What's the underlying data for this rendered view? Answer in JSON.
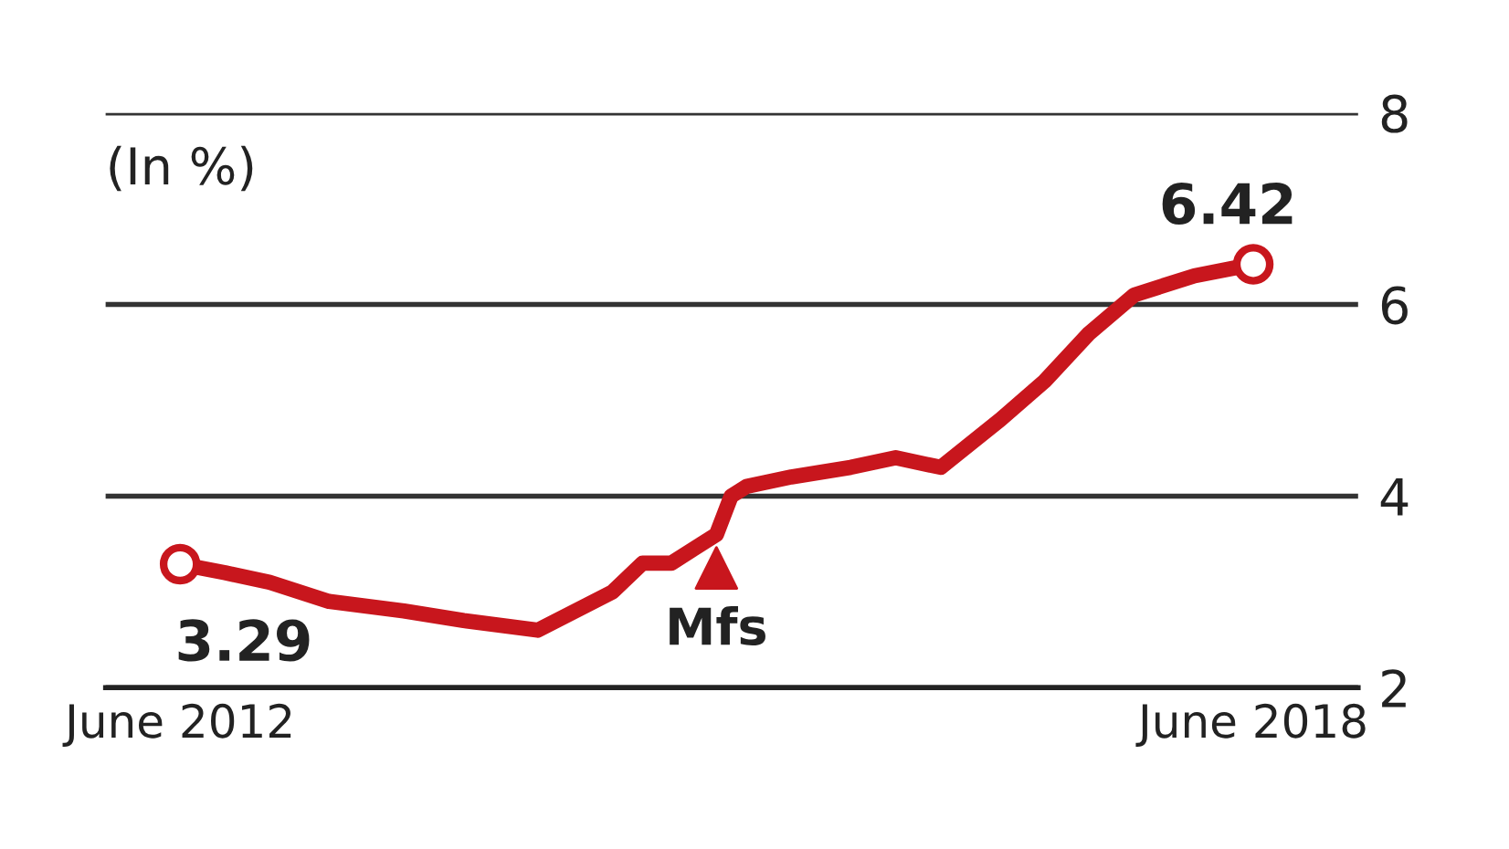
{
  "chart_data": {
    "type": "line",
    "ylabel": "(In %)",
    "x": [
      "2012-06",
      "2012-09",
      "2012-12",
      "2013-04",
      "2013-09",
      "2014-01",
      "2014-06",
      "2014-11",
      "2015-01",
      "2015-03",
      "2015-06",
      "2015-07",
      "2015-08",
      "2015-11",
      "2016-03",
      "2016-06",
      "2016-09",
      "2017-01",
      "2017-04",
      "2017-07",
      "2017-10",
      "2018-02",
      "2018-06"
    ],
    "series": [
      {
        "color": "#c8161d",
        "values": [
          3.29,
          3.2,
          3.1,
          2.9,
          2.8,
          2.7,
          2.6,
          3.0,
          3.3,
          3.3,
          3.6,
          4.0,
          4.1,
          4.2,
          4.3,
          4.4,
          4.3,
          4.8,
          5.2,
          5.7,
          6.1,
          6.3,
          6.42
        ],
        "value_labels": [
          "3.29",
          null,
          null,
          null,
          null,
          null,
          null,
          null,
          null,
          null,
          null,
          null,
          null,
          null,
          null,
          null,
          null,
          null,
          null,
          null,
          null,
          null,
          "6.42"
        ]
      }
    ],
    "xlim": [
      "2012-01",
      "2019-01"
    ],
    "xticks": [
      {
        "value": "2012-06",
        "label": "June 2012"
      },
      {
        "value": "2018-06",
        "label": "June 2018"
      }
    ],
    "ylim": [
      2,
      8
    ],
    "yticks": [
      2,
      4,
      6,
      8
    ],
    "grid": "y",
    "line_style": "solid",
    "legend": false,
    "annotations": [
      {
        "text": "Mfs",
        "x": "2015-06",
        "y": 3.6
      }
    ]
  }
}
